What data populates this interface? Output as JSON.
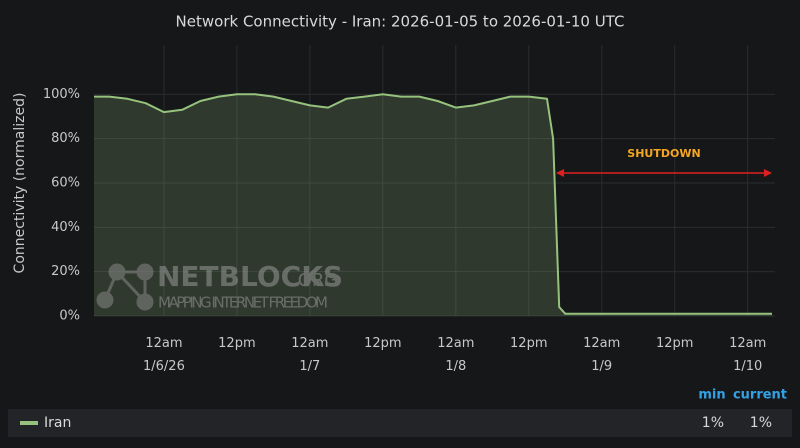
{
  "chart_data": {
    "type": "line",
    "title": "Network Connectivity - Iran: 2026-01-05 to 2026-01-10 UTC",
    "y_label": "Connectivity (normalized)",
    "x": [
      "2026-01-05T12:30",
      "2026-01-05T15:00",
      "2026-01-05T18:00",
      "2026-01-05T21:00",
      "2026-01-06T00:00",
      "2026-01-06T03:00",
      "2026-01-06T06:00",
      "2026-01-06T09:00",
      "2026-01-06T12:00",
      "2026-01-06T15:00",
      "2026-01-06T18:00",
      "2026-01-06T21:00",
      "2026-01-07T00:00",
      "2026-01-07T03:00",
      "2026-01-07T06:00",
      "2026-01-07T09:00",
      "2026-01-07T12:00",
      "2026-01-07T15:00",
      "2026-01-07T18:00",
      "2026-01-07T21:00",
      "2026-01-08T00:00",
      "2026-01-08T03:00",
      "2026-01-08T06:00",
      "2026-01-08T09:00",
      "2026-01-08T12:00",
      "2026-01-08T15:00",
      "2026-01-08T16:00",
      "2026-01-08T17:00",
      "2026-01-08T18:00",
      "2026-01-09T00:00",
      "2026-01-09T06:00",
      "2026-01-09T12:00",
      "2026-01-09T18:00",
      "2026-01-10T00:00",
      "2026-01-10T04:00"
    ],
    "series": [
      {
        "name": "Iran",
        "color": "#96c27d",
        "values": [
          99,
          99,
          98,
          96,
          92,
          93,
          97,
          99,
          100,
          100,
          99,
          97,
          95,
          94,
          98,
          99,
          100,
          99,
          99,
          97,
          94,
          95,
          97,
          99,
          99,
          98,
          80,
          4,
          1,
          1,
          1,
          1,
          1,
          1,
          1
        ]
      }
    ],
    "xlim": [
      "2026-01-05T12:30",
      "2026-01-10T04:00"
    ],
    "xticks": [
      {
        "value": "2026-01-06T00:00",
        "label": "12am\n1/6/26"
      },
      {
        "value": "2026-01-06T12:00",
        "label": "12pm"
      },
      {
        "value": "2026-01-07T00:00",
        "label": "12am\n1/7"
      },
      {
        "value": "2026-01-07T12:00",
        "label": "12pm"
      },
      {
        "value": "2026-01-08T00:00",
        "label": "12am\n1/8"
      },
      {
        "value": "2026-01-08T12:00",
        "label": "12pm"
      },
      {
        "value": "2026-01-09T00:00",
        "label": "12am\n1/9"
      },
      {
        "value": "2026-01-09T12:00",
        "label": "12pm"
      },
      {
        "value": "2026-01-10T00:00",
        "label": "12am\n1/10"
      }
    ],
    "ylim": [
      0,
      120
    ],
    "yticks": [
      {
        "value": 0,
        "label": "0%"
      },
      {
        "value": 20,
        "label": "20%"
      },
      {
        "value": 40,
        "label": "40%"
      },
      {
        "value": 60,
        "label": "60%"
      },
      {
        "value": 80,
        "label": "80%"
      },
      {
        "value": 100,
        "label": "100%"
      }
    ],
    "grid": true,
    "annotation": "SHUTDOWN",
    "legend_stats": [
      {
        "name": "min",
        "value": 1,
        "label": "1%"
      },
      {
        "name": "current",
        "value": 1,
        "label": "1%"
      }
    ],
    "watermark": {
      "name": "NETBLOCKS",
      "suffix": ".ORG",
      "tagline": "MAPPING INTERNET FREEDOM"
    }
  }
}
